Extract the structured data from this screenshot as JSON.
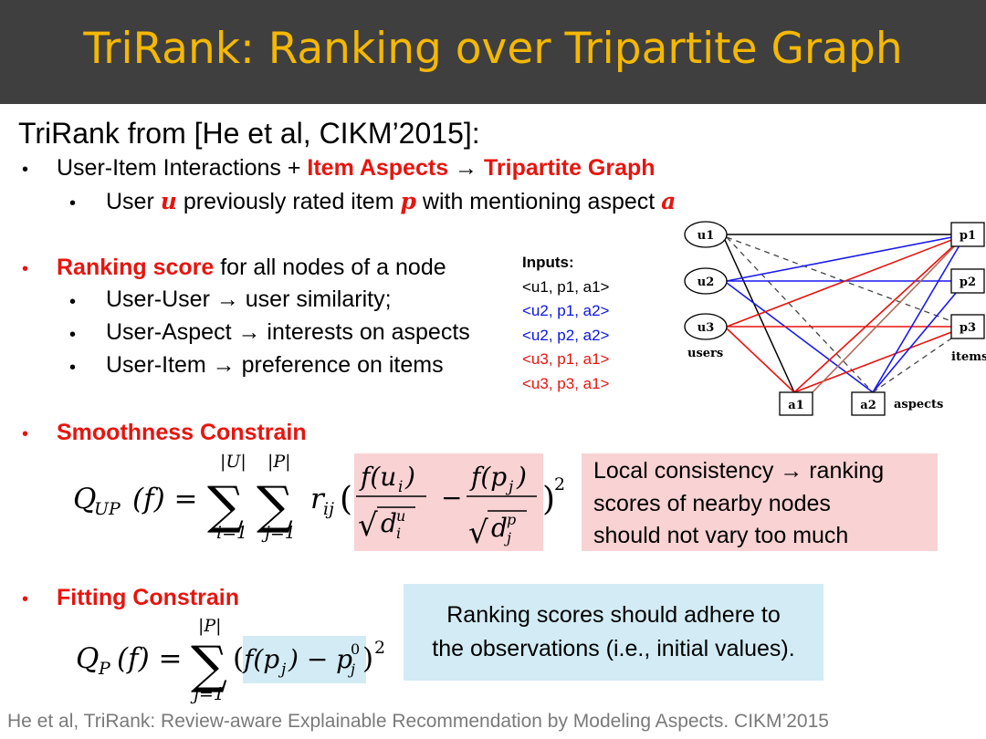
{
  "title": "TriRank: Ranking over Tripartite Graph",
  "heading": "TriRank from [He et al, CIKM’2015]:",
  "bullet_char": "•",
  "b1": {
    "prefix": "User-Item Interactions + ",
    "aspects": "Item Aspects",
    "arrow": " → ",
    "graph": "Tripartite Graph"
  },
  "b1_sub": {
    "t1": "User ",
    "u": "u",
    "t2": " previously rated item ",
    "p": "p",
    "t3": " with mentioning aspect ",
    "a": "a"
  },
  "b2": {
    "highlight": "Ranking score",
    "rest": " for all nodes of a node"
  },
  "b2_subs": [
    "User-User → user similarity;",
    "User-Aspect → interests on aspects",
    "User-Item → preference on items"
  ],
  "inputs": {
    "title": "Inputs:",
    "rows": [
      {
        "text": "<u1, p1, a1>",
        "color": "#000000"
      },
      {
        "text": "<u2, p1, a2>",
        "color": "#0b14e8"
      },
      {
        "text": "<u2, p2, a2>",
        "color": "#0b14e8"
      },
      {
        "text": "<u3, p1, a1>",
        "color": "#e8140e"
      },
      {
        "text": "<u3, p3, a1>",
        "color": "#e8140e"
      }
    ]
  },
  "graph": {
    "users": [
      "u1",
      "u2",
      "u3"
    ],
    "items": [
      "p1",
      "p2",
      "p3"
    ],
    "aspects": [
      "a1",
      "a2"
    ],
    "users_label": "users",
    "items_label": "items",
    "aspects_label": "aspects",
    "colors": {
      "black": "#000000",
      "blue": "#1a1aee",
      "red": "#e8140e",
      "brown": "#b06a5a",
      "dashed": "#444444"
    }
  },
  "b3": "Smoothness Constrain",
  "b4": "Fitting Constrain",
  "eq1": {
    "lhs": "Q",
    "lhs_sub": "UP",
    "lhs_arg": "(f) =",
    "sum1_top": "|U|",
    "sum1_bot": "i=1",
    "sum2_top": "|P|",
    "sum2_bot": "j=1",
    "r": "r",
    "r_sub": "ij",
    "num1": "f(u",
    "num1_sub": "i",
    "num_close": ")",
    "den1": "d",
    "den1_sup": "u",
    "den1_sub": "i",
    "minus": "−",
    "num2": "f(p",
    "num2_sub": "j",
    "den2": "d",
    "den2_sup": "p",
    "den2_sub": "j",
    "sq": "2",
    "sigma": "∑",
    "radical": "√",
    "open_paren": "(",
    "close_paren": ")"
  },
  "eq2": {
    "lhs": "Q",
    "lhs_sub": "P",
    "lhs_arg": "(f) =",
    "sum_top": "|P|",
    "sum_bot": "j=1",
    "body": "f(p",
    "body_sub": "j",
    "body_mid": ") − p",
    "p_sup": "0",
    "p_sub": "j",
    "sq": "2",
    "sigma": "∑",
    "open_paren": "(",
    "close_paren": ")"
  },
  "pink_box": [
    "Local consistency → ranking",
    "scores of nearby nodes",
    "should not vary too much"
  ],
  "blue_box": [
    "Ranking scores should adhere to",
    "the observations (i.e., initial values)."
  ],
  "footer": "He et al, TriRank: Review-aware Explainable Recommendation by Modeling Aspects. CIKM’2015"
}
